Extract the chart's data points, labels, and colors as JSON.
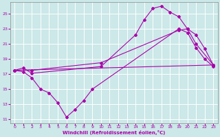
{
  "xlabel": "Windchill (Refroidissement éolien,°C)",
  "bg_color": "#cce8e8",
  "grid_color": "#aadddd",
  "line_color": "#aa00aa",
  "ylim": [
    10.5,
    26.5
  ],
  "xlim": [
    -0.5,
    23.5
  ],
  "yticks": [
    11,
    13,
    15,
    17,
    19,
    21,
    23,
    25
  ],
  "xticks": [
    0,
    1,
    2,
    3,
    4,
    5,
    6,
    7,
    8,
    9,
    10,
    11,
    12,
    13,
    14,
    15,
    16,
    17,
    18,
    19,
    20,
    21,
    22,
    23
  ],
  "line1_x": [
    0,
    1,
    2,
    10,
    14,
    15,
    16,
    17,
    18,
    19,
    20,
    21,
    22,
    23
  ],
  "line1_y": [
    17.5,
    17.8,
    17.1,
    18.0,
    22.2,
    24.2,
    25.7,
    26.0,
    25.2,
    24.6,
    23.0,
    22.2,
    20.4,
    18.2
  ],
  "line2_x": [
    0,
    2,
    10,
    19,
    20,
    21,
    23
  ],
  "line2_y": [
    17.5,
    17.5,
    18.5,
    22.8,
    23.0,
    21.0,
    18.2
  ],
  "line3_x": [
    0,
    1,
    2,
    3,
    4,
    5,
    6,
    7,
    8,
    9,
    19,
    20,
    21,
    22,
    23
  ],
  "line3_y": [
    17.5,
    17.3,
    16.5,
    15.0,
    14.5,
    13.2,
    11.3,
    12.3,
    13.5,
    15.0,
    23.0,
    22.5,
    20.5,
    19.0,
    18.0
  ],
  "line4_x": [
    0,
    23
  ],
  "line4_y": [
    17.5,
    18.2
  ]
}
